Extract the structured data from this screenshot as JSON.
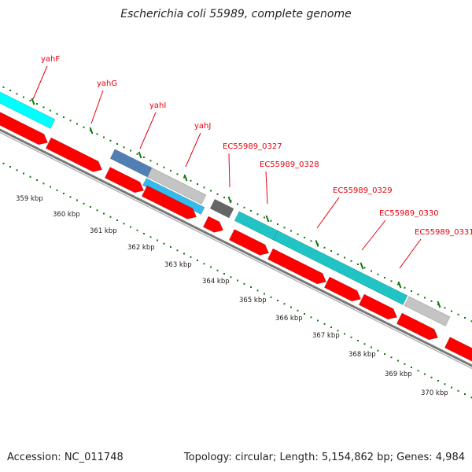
{
  "title": "Escherichia coli 55989, complete genome",
  "footer": {
    "accession": "Accession: NC_011748",
    "summary": "Topology: circular; Length: 5,154,862 bp; Genes: 4,984"
  },
  "colors": {
    "label": "#e8000d",
    "forward_cds": "#ff0000",
    "cyan": "#00ffff",
    "teal": "#20c4c4",
    "steel_blue": "#4f7fb4",
    "light_blue": "#33bbee",
    "gray": "#c4c4c4",
    "dark_gray": "#666666",
    "backbone": "#777777",
    "ticks": "#117711"
  },
  "scale": {
    "unit": "kbp",
    "labels": [
      "359 kbp",
      "360 kbp",
      "361 kbp",
      "362 kbp",
      "363 kbp",
      "364 kbp",
      "365 kbp",
      "366 kbp",
      "367 kbp",
      "368 kbp",
      "369 kbp",
      "370 kbp"
    ]
  },
  "gene_labels": [
    "yahF",
    "yahG",
    "yahI",
    "yahJ",
    "EC55989_0327",
    "EC55989_0328",
    "EC55989_0329",
    "EC55989_0330",
    "EC55989_0331"
  ]
}
